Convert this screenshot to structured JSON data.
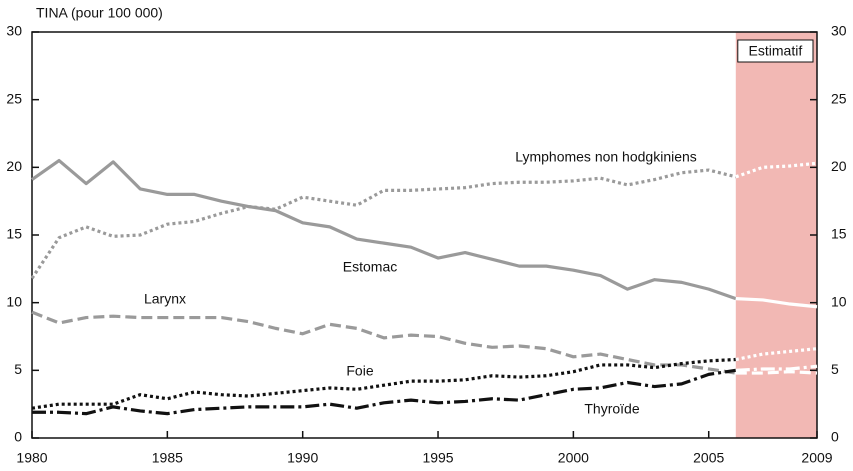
{
  "chart_data": {
    "type": "line",
    "y_axis_label": "TINA (pour 100 000)",
    "estimate_label": "Estimatif",
    "estimate_xrange": [
      2006,
      2009
    ],
    "estimate_color": "#f2b8b4",
    "x": [
      1980,
      1981,
      1982,
      1983,
      1984,
      1985,
      1986,
      1987,
      1988,
      1989,
      1990,
      1991,
      1992,
      1993,
      1994,
      1995,
      1996,
      1997,
      1998,
      1999,
      2000,
      2001,
      2002,
      2003,
      2004,
      2005,
      2006,
      2007,
      2008,
      2009
    ],
    "xlim": [
      1980,
      2009
    ],
    "xticks": [
      1980,
      1985,
      1990,
      1995,
      2000,
      2005,
      2009
    ],
    "ylim": [
      0,
      30
    ],
    "yticks": [
      0,
      5,
      10,
      15,
      20,
      25,
      30
    ],
    "series": [
      {
        "name": "Lymphomes non hodgkiniens",
        "color": "#9a9a9a",
        "style": "dotted",
        "values": [
          11.8,
          14.8,
          15.6,
          14.9,
          15.0,
          15.8,
          16.0,
          16.6,
          17.1,
          16.9,
          17.8,
          17.5,
          17.2,
          18.3,
          18.3,
          18.4,
          18.5,
          18.8,
          18.9,
          18.9,
          19.0,
          19.2,
          18.7,
          19.1,
          19.6,
          19.8,
          19.3,
          20.0,
          20.1,
          20.3
        ]
      },
      {
        "name": "Estomac",
        "color": "#9a9a9a",
        "style": "solid",
        "values": [
          19.1,
          20.5,
          18.8,
          20.4,
          18.4,
          18.0,
          18.0,
          17.5,
          17.1,
          16.8,
          15.9,
          15.6,
          14.7,
          14.4,
          14.1,
          13.3,
          13.7,
          13.2,
          12.7,
          12.7,
          12.4,
          12.0,
          11.0,
          11.7,
          11.5,
          11.0,
          10.3,
          10.2,
          9.9,
          9.7
        ]
      },
      {
        "name": "Larynx",
        "color": "#9a9a9a",
        "style": "dashed",
        "values": [
          9.3,
          8.5,
          8.9,
          9.0,
          8.9,
          8.9,
          8.9,
          8.9,
          8.6,
          8.1,
          7.7,
          8.4,
          8.1,
          7.4,
          7.6,
          7.5,
          7.0,
          6.7,
          6.8,
          6.6,
          6.0,
          6.2,
          5.8,
          5.4,
          5.4,
          5.1,
          4.8,
          4.8,
          4.9,
          4.8
        ]
      },
      {
        "name": "Foie",
        "color": "#111111",
        "style": "dotted",
        "values": [
          2.2,
          2.5,
          2.5,
          2.5,
          3.2,
          2.9,
          3.4,
          3.2,
          3.1,
          3.3,
          3.5,
          3.7,
          3.6,
          3.9,
          4.2,
          4.2,
          4.3,
          4.6,
          4.5,
          4.6,
          4.9,
          5.4,
          5.4,
          5.2,
          5.5,
          5.7,
          5.8,
          6.2,
          6.4,
          6.6
        ]
      },
      {
        "name": "Thyroïde",
        "color": "#111111",
        "style": "dashdot",
        "values": [
          1.9,
          1.9,
          1.8,
          2.3,
          2.0,
          1.8,
          2.1,
          2.2,
          2.3,
          2.3,
          2.3,
          2.5,
          2.2,
          2.6,
          2.8,
          2.6,
          2.7,
          2.9,
          2.8,
          3.2,
          3.6,
          3.7,
          4.1,
          3.8,
          4.0,
          4.7,
          5.0,
          5.1,
          5.1,
          5.3
        ]
      }
    ]
  }
}
